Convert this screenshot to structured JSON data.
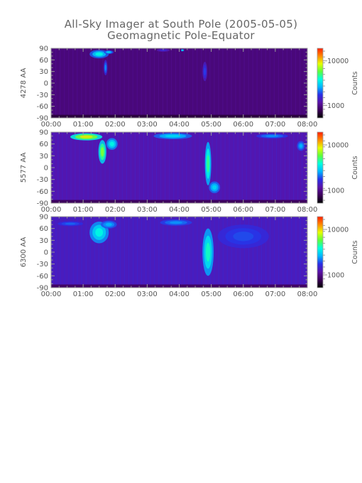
{
  "title": "All-Sky Imager at South Pole (2005-05-05)",
  "subtitle": "Geomagnetic Pole-Equator",
  "colors": {
    "background": "#ffffff",
    "frame": "#999999",
    "text": "#555555",
    "colormap": [
      "#000000",
      "#3c0058",
      "#5a12a6",
      "#2a2ee6",
      "#00b4ff",
      "#00ffe0",
      "#5cff3c",
      "#e6ff00",
      "#ff8a00",
      "#ff1e00"
    ]
  },
  "chart_data": [
    {
      "type": "heatmap",
      "ylabel": "4278 AA",
      "colorbar_label": "Counts",
      "colorbar_ticks": [
        "10000",
        "1000"
      ],
      "x_ticks": [
        "00:00",
        "01:00",
        "02:00",
        "03:00",
        "04:00",
        "05:00",
        "06:00",
        "07:00",
        "08:00"
      ],
      "y_ticks": [
        "90",
        "60",
        "30",
        "0",
        "-30",
        "-60",
        "-90"
      ],
      "xlim_hours": [
        0,
        8
      ],
      "ylim": [
        -90,
        90
      ],
      "color_scale": "log",
      "baseline_level": 0.16,
      "events": [
        {
          "x": 1.5,
          "y": 75,
          "w": 0.6,
          "h": 22,
          "level": 0.55
        },
        {
          "x": 1.7,
          "y": 40,
          "w": 0.12,
          "h": 40,
          "level": 0.42
        },
        {
          "x": 1.8,
          "y": 80,
          "w": 0.3,
          "h": 10,
          "level": 0.5
        },
        {
          "x": 4.8,
          "y": 30,
          "w": 0.15,
          "h": 50,
          "level": 0.35
        },
        {
          "x": 3.5,
          "y": 85,
          "w": 0.4,
          "h": 8,
          "level": 0.3
        },
        {
          "x": 4.1,
          "y": 85,
          "w": 0.1,
          "h": 6,
          "level": 0.55
        }
      ]
    },
    {
      "type": "heatmap",
      "ylabel": "5577 AA",
      "colorbar_label": "Counts",
      "colorbar_ticks": [
        "10000",
        "1000"
      ],
      "x_ticks": [
        "00:00",
        "01:00",
        "02:00",
        "03:00",
        "04:00",
        "05:00",
        "06:00",
        "07:00",
        "08:00"
      ],
      "y_ticks": [
        "90",
        "60",
        "30",
        "0",
        "-30",
        "-60",
        "-90"
      ],
      "xlim_hours": [
        0,
        8
      ],
      "ylim": [
        -90,
        90
      ],
      "color_scale": "log",
      "baseline_level": 0.24,
      "events": [
        {
          "x": 1.1,
          "y": 78,
          "w": 1.0,
          "h": 18,
          "level": 0.8
        },
        {
          "x": 1.6,
          "y": 40,
          "w": 0.25,
          "h": 60,
          "level": 0.7
        },
        {
          "x": 1.9,
          "y": 60,
          "w": 0.35,
          "h": 30,
          "level": 0.55
        },
        {
          "x": 4.9,
          "y": 10,
          "w": 0.2,
          "h": 110,
          "level": 0.62
        },
        {
          "x": 5.1,
          "y": -50,
          "w": 0.35,
          "h": 30,
          "level": 0.5
        },
        {
          "x": 3.8,
          "y": 80,
          "w": 1.2,
          "h": 16,
          "level": 0.5
        },
        {
          "x": 6.9,
          "y": 80,
          "w": 1.0,
          "h": 12,
          "level": 0.42
        },
        {
          "x": 7.8,
          "y": 55,
          "w": 0.25,
          "h": 25,
          "level": 0.45
        }
      ]
    },
    {
      "type": "heatmap",
      "ylabel": "6300 AA",
      "colorbar_label": "Counts",
      "colorbar_ticks": [
        "10000",
        "1000"
      ],
      "x_ticks": [
        "00:00",
        "01:00",
        "02:00",
        "03:00",
        "04:00",
        "05:00",
        "06:00",
        "07:00",
        "08:00"
      ],
      "y_ticks": [
        "90",
        "60",
        "30",
        "0",
        "-30",
        "-60",
        "-90"
      ],
      "xlim_hours": [
        0,
        8
      ],
      "ylim": [
        -90,
        90
      ],
      "color_scale": "log",
      "baseline_level": 0.26,
      "events": [
        {
          "x": 1.5,
          "y": 50,
          "w": 0.6,
          "h": 55,
          "level": 0.55
        },
        {
          "x": 1.8,
          "y": 70,
          "w": 0.5,
          "h": 20,
          "level": 0.45
        },
        {
          "x": 4.9,
          "y": 0,
          "w": 0.35,
          "h": 120,
          "level": 0.58
        },
        {
          "x": 3.9,
          "y": 75,
          "w": 1.0,
          "h": 16,
          "level": 0.42
        },
        {
          "x": 6.0,
          "y": 40,
          "w": 1.6,
          "h": 60,
          "level": 0.36
        },
        {
          "x": 0.6,
          "y": 72,
          "w": 0.8,
          "h": 12,
          "level": 0.38
        }
      ]
    }
  ]
}
